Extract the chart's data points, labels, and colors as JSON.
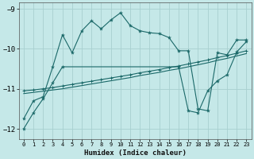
{
  "xlabel": "Humidex (Indice chaleur)",
  "bg_color": "#c5e8e8",
  "grid_color": "#a8d0d0",
  "line_color": "#1a6868",
  "xlim": [
    -0.5,
    23.5
  ],
  "ylim": [
    -12.25,
    -8.85
  ],
  "yticks": [
    -12,
    -11,
    -10,
    -9
  ],
  "xticks": [
    0,
    1,
    2,
    3,
    4,
    5,
    6,
    7,
    8,
    9,
    10,
    11,
    12,
    13,
    14,
    15,
    16,
    17,
    18,
    19,
    20,
    21,
    22,
    23
  ],
  "line1_x": [
    0,
    1,
    2,
    3,
    4,
    5,
    6,
    7,
    8,
    9,
    10,
    11,
    12,
    13,
    14,
    15,
    16,
    17,
    18,
    19,
    20,
    21,
    22,
    23
  ],
  "line1_y": [
    -11.75,
    -11.3,
    -11.2,
    -10.45,
    -9.65,
    -10.1,
    -9.55,
    -9.3,
    -9.5,
    -9.28,
    -9.1,
    -9.42,
    -9.55,
    -9.6,
    -9.62,
    -9.72,
    -10.05,
    -10.05,
    -11.5,
    -11.55,
    -10.1,
    -10.15,
    -9.78,
    -9.78
  ],
  "line2_x": [
    0,
    1,
    2,
    3,
    4,
    5,
    6,
    7,
    8,
    9,
    10,
    11,
    12,
    13,
    14,
    15,
    16,
    17,
    18,
    19,
    20,
    21,
    22,
    23
  ],
  "line2_y": [
    -11.05,
    -11.03,
    -11.0,
    -10.97,
    -10.93,
    -10.89,
    -10.85,
    -10.81,
    -10.77,
    -10.73,
    -10.69,
    -10.65,
    -10.6,
    -10.56,
    -10.52,
    -10.47,
    -10.43,
    -10.38,
    -10.33,
    -10.28,
    -10.22,
    -10.17,
    -10.11,
    -10.05
  ],
  "line3_x": [
    0,
    1,
    2,
    3,
    4,
    5,
    6,
    7,
    8,
    9,
    10,
    11,
    12,
    13,
    14,
    15,
    16,
    17,
    18,
    19,
    20,
    21,
    22,
    23
  ],
  "line3_y": [
    -11.12,
    -11.09,
    -11.06,
    -11.03,
    -11.0,
    -10.96,
    -10.92,
    -10.88,
    -10.84,
    -10.8,
    -10.76,
    -10.72,
    -10.67,
    -10.63,
    -10.59,
    -10.54,
    -10.5,
    -10.45,
    -10.4,
    -10.35,
    -10.29,
    -10.24,
    -10.18,
    -10.12
  ],
  "line4_x": [
    0,
    1,
    2,
    3,
    4,
    16,
    17,
    18,
    19,
    20,
    21,
    22,
    23
  ],
  "line4_y": [
    -12.0,
    -11.6,
    -11.25,
    -10.85,
    -10.45,
    -10.45,
    -11.55,
    -11.6,
    -11.05,
    -10.8,
    -10.65,
    -10.08,
    -9.82
  ]
}
